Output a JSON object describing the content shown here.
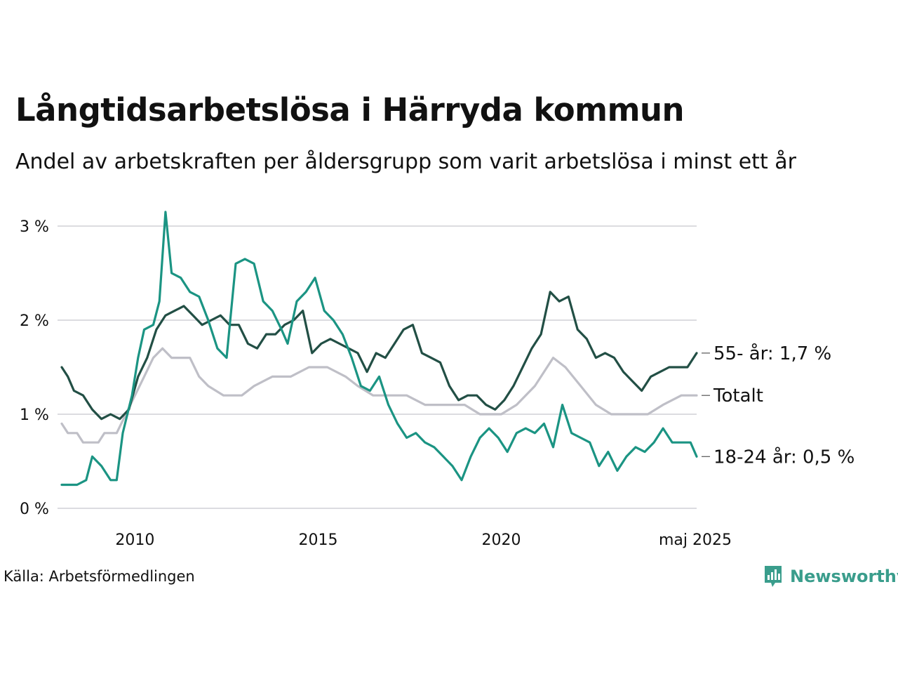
{
  "title": "Långtidsarbetslösa i Härryda kommun",
  "subtitle": "Andel av arbetskraften per åldersgrupp som varit arbetslösa i minst ett år",
  "source": "Källa: Arbetsförmedlingen",
  "brand": {
    "name": "Newsworthy",
    "logo_icon": "bar-chart-speech-bubble-icon",
    "color": "#3a9d8c"
  },
  "chart_data": {
    "type": "line",
    "x_type": "date",
    "x_range": [
      "2008-01",
      "2025-05"
    ],
    "ylim": [
      0,
      3.2
    ],
    "y_ticks": [
      0,
      1,
      2,
      3
    ],
    "y_tick_labels": [
      "0 %",
      "1 %",
      "2 %",
      "3 %"
    ],
    "x_ticks": [
      "2010-01",
      "2015-01",
      "2020-01",
      "2025-05"
    ],
    "x_tick_labels": [
      "2010",
      "2015",
      "2020",
      "maj 2025"
    ],
    "grid": "horizontal",
    "legend": "end-labels",
    "series": [
      {
        "name": "Totalt",
        "end_label": "Totalt",
        "color": "#bfbfc7",
        "points": [
          [
            "2008-01",
            0.9
          ],
          [
            "2008-03",
            0.8
          ],
          [
            "2008-06",
            0.8
          ],
          [
            "2008-08",
            0.7
          ],
          [
            "2009-01",
            0.7
          ],
          [
            "2009-03",
            0.8
          ],
          [
            "2009-07",
            0.8
          ],
          [
            "2009-10",
            1.0
          ],
          [
            "2010-01",
            1.2
          ],
          [
            "2010-04",
            1.4
          ],
          [
            "2010-07",
            1.6
          ],
          [
            "2010-10",
            1.7
          ],
          [
            "2011-01",
            1.6
          ],
          [
            "2011-07",
            1.6
          ],
          [
            "2011-10",
            1.4
          ],
          [
            "2012-01",
            1.3
          ],
          [
            "2012-06",
            1.2
          ],
          [
            "2012-12",
            1.2
          ],
          [
            "2013-04",
            1.3
          ],
          [
            "2013-10",
            1.4
          ],
          [
            "2014-04",
            1.4
          ],
          [
            "2014-10",
            1.5
          ],
          [
            "2015-04",
            1.5
          ],
          [
            "2015-10",
            1.4
          ],
          [
            "2016-02",
            1.3
          ],
          [
            "2016-07",
            1.2
          ],
          [
            "2017-01",
            1.2
          ],
          [
            "2017-06",
            1.2
          ],
          [
            "2017-12",
            1.1
          ],
          [
            "2018-06",
            1.1
          ],
          [
            "2019-01",
            1.1
          ],
          [
            "2019-06",
            1.0
          ],
          [
            "2020-01",
            1.0
          ],
          [
            "2020-06",
            1.1
          ],
          [
            "2020-12",
            1.3
          ],
          [
            "2021-06",
            1.6
          ],
          [
            "2021-10",
            1.5
          ],
          [
            "2022-03",
            1.3
          ],
          [
            "2022-08",
            1.1
          ],
          [
            "2023-01",
            1.0
          ],
          [
            "2023-06",
            1.0
          ],
          [
            "2024-01",
            1.0
          ],
          [
            "2024-06",
            1.1
          ],
          [
            "2024-12",
            1.2
          ],
          [
            "2025-05",
            1.2
          ]
        ]
      },
      {
        "name": "55- år",
        "end_label": "55- år: 1,7 %",
        "color": "#224f45",
        "points": [
          [
            "2008-01",
            1.5
          ],
          [
            "2008-03",
            1.4
          ],
          [
            "2008-05",
            1.25
          ],
          [
            "2008-08",
            1.2
          ],
          [
            "2008-11",
            1.05
          ],
          [
            "2009-02",
            0.95
          ],
          [
            "2009-05",
            1.0
          ],
          [
            "2009-08",
            0.95
          ],
          [
            "2009-11",
            1.05
          ],
          [
            "2010-02",
            1.4
          ],
          [
            "2010-05",
            1.6
          ],
          [
            "2010-08",
            1.9
          ],
          [
            "2010-11",
            2.05
          ],
          [
            "2011-02",
            2.1
          ],
          [
            "2011-05",
            2.15
          ],
          [
            "2011-08",
            2.05
          ],
          [
            "2011-11",
            1.95
          ],
          [
            "2012-02",
            2.0
          ],
          [
            "2012-05",
            2.05
          ],
          [
            "2012-08",
            1.95
          ],
          [
            "2012-11",
            1.95
          ],
          [
            "2013-02",
            1.75
          ],
          [
            "2013-05",
            1.7
          ],
          [
            "2013-08",
            1.85
          ],
          [
            "2013-11",
            1.85
          ],
          [
            "2014-02",
            1.95
          ],
          [
            "2014-05",
            2.0
          ],
          [
            "2014-08",
            2.1
          ],
          [
            "2014-11",
            1.65
          ],
          [
            "2015-02",
            1.75
          ],
          [
            "2015-05",
            1.8
          ],
          [
            "2015-08",
            1.75
          ],
          [
            "2015-11",
            1.7
          ],
          [
            "2016-02",
            1.65
          ],
          [
            "2016-05",
            1.45
          ],
          [
            "2016-08",
            1.65
          ],
          [
            "2016-11",
            1.6
          ],
          [
            "2017-02",
            1.75
          ],
          [
            "2017-05",
            1.9
          ],
          [
            "2017-08",
            1.95
          ],
          [
            "2017-11",
            1.65
          ],
          [
            "2018-02",
            1.6
          ],
          [
            "2018-05",
            1.55
          ],
          [
            "2018-08",
            1.3
          ],
          [
            "2018-11",
            1.15
          ],
          [
            "2019-02",
            1.2
          ],
          [
            "2019-05",
            1.2
          ],
          [
            "2019-08",
            1.1
          ],
          [
            "2019-11",
            1.05
          ],
          [
            "2020-02",
            1.15
          ],
          [
            "2020-05",
            1.3
          ],
          [
            "2020-08",
            1.5
          ],
          [
            "2020-11",
            1.7
          ],
          [
            "2021-02",
            1.85
          ],
          [
            "2021-05",
            2.3
          ],
          [
            "2021-08",
            2.2
          ],
          [
            "2021-11",
            2.25
          ],
          [
            "2022-02",
            1.9
          ],
          [
            "2022-05",
            1.8
          ],
          [
            "2022-08",
            1.6
          ],
          [
            "2022-11",
            1.65
          ],
          [
            "2023-02",
            1.6
          ],
          [
            "2023-05",
            1.45
          ],
          [
            "2023-08",
            1.35
          ],
          [
            "2023-11",
            1.25
          ],
          [
            "2024-02",
            1.4
          ],
          [
            "2024-05",
            1.45
          ],
          [
            "2024-08",
            1.5
          ],
          [
            "2024-11",
            1.5
          ],
          [
            "2025-02",
            1.5
          ],
          [
            "2025-05",
            1.65
          ]
        ]
      },
      {
        "name": "18-24 år",
        "end_label": "18-24 år: 0,5 %",
        "color": "#1b9483",
        "points": [
          [
            "2008-01",
            0.25
          ],
          [
            "2008-06",
            0.25
          ],
          [
            "2008-09",
            0.3
          ],
          [
            "2008-11",
            0.55
          ],
          [
            "2009-02",
            0.45
          ],
          [
            "2009-05",
            0.3
          ],
          [
            "2009-07",
            0.3
          ],
          [
            "2009-09",
            0.8
          ],
          [
            "2009-12",
            1.2
          ],
          [
            "2010-02",
            1.6
          ],
          [
            "2010-04",
            1.9
          ],
          [
            "2010-07",
            1.95
          ],
          [
            "2010-09",
            2.2
          ],
          [
            "2010-11",
            3.15
          ],
          [
            "2011-01",
            2.5
          ],
          [
            "2011-04",
            2.45
          ],
          [
            "2011-07",
            2.3
          ],
          [
            "2011-10",
            2.25
          ],
          [
            "2012-01",
            2.0
          ],
          [
            "2012-04",
            1.7
          ],
          [
            "2012-07",
            1.6
          ],
          [
            "2012-10",
            2.6
          ],
          [
            "2013-01",
            2.65
          ],
          [
            "2013-04",
            2.6
          ],
          [
            "2013-07",
            2.2
          ],
          [
            "2013-10",
            2.1
          ],
          [
            "2014-01",
            1.9
          ],
          [
            "2014-03",
            1.75
          ],
          [
            "2014-06",
            2.2
          ],
          [
            "2014-09",
            2.3
          ],
          [
            "2014-12",
            2.45
          ],
          [
            "2015-03",
            2.1
          ],
          [
            "2015-06",
            2.0
          ],
          [
            "2015-09",
            1.85
          ],
          [
            "2015-12",
            1.6
          ],
          [
            "2016-03",
            1.3
          ],
          [
            "2016-06",
            1.25
          ],
          [
            "2016-09",
            1.4
          ],
          [
            "2016-12",
            1.1
          ],
          [
            "2017-03",
            0.9
          ],
          [
            "2017-06",
            0.75
          ],
          [
            "2017-09",
            0.8
          ],
          [
            "2017-12",
            0.7
          ],
          [
            "2018-03",
            0.65
          ],
          [
            "2018-06",
            0.55
          ],
          [
            "2018-09",
            0.45
          ],
          [
            "2018-12",
            0.3
          ],
          [
            "2019-03",
            0.55
          ],
          [
            "2019-06",
            0.75
          ],
          [
            "2019-09",
            0.85
          ],
          [
            "2019-12",
            0.75
          ],
          [
            "2020-03",
            0.6
          ],
          [
            "2020-06",
            0.8
          ],
          [
            "2020-09",
            0.85
          ],
          [
            "2020-12",
            0.8
          ],
          [
            "2021-03",
            0.9
          ],
          [
            "2021-06",
            0.65
          ],
          [
            "2021-09",
            1.1
          ],
          [
            "2021-12",
            0.8
          ],
          [
            "2022-03",
            0.75
          ],
          [
            "2022-06",
            0.7
          ],
          [
            "2022-09",
            0.45
          ],
          [
            "2022-12",
            0.6
          ],
          [
            "2023-03",
            0.4
          ],
          [
            "2023-06",
            0.55
          ],
          [
            "2023-09",
            0.65
          ],
          [
            "2023-12",
            0.6
          ],
          [
            "2024-03",
            0.7
          ],
          [
            "2024-06",
            0.85
          ],
          [
            "2024-09",
            0.7
          ],
          [
            "2024-12",
            0.7
          ],
          [
            "2025-03",
            0.7
          ],
          [
            "2025-05",
            0.55
          ]
        ]
      }
    ]
  }
}
